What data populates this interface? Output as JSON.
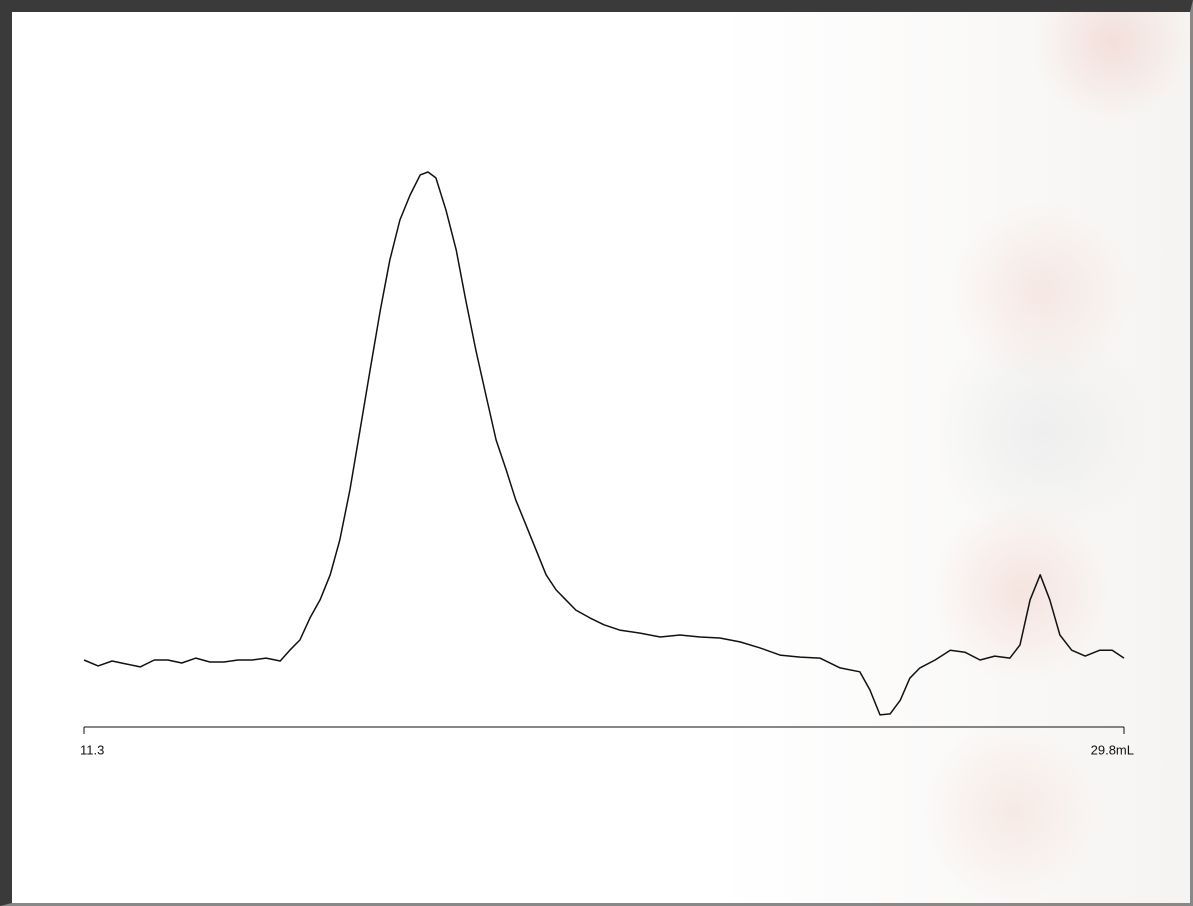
{
  "chart_data": {
    "type": "line",
    "x": [
      11.3,
      11.55,
      11.8,
      12.05,
      12.3,
      12.55,
      12.79,
      13.04,
      13.29,
      13.54,
      13.79,
      14.04,
      14.29,
      14.54,
      14.79,
      14.96,
      15.14,
      15.32,
      15.5,
      15.68,
      15.85,
      16.03,
      16.21,
      16.39,
      16.57,
      16.74,
      16.92,
      17.1,
      17.28,
      17.42,
      17.56,
      17.74,
      17.92,
      18.09,
      18.27,
      18.45,
      18.63,
      18.81,
      18.98,
      19.16,
      19.34,
      19.52,
      19.7,
      19.87,
      20.05,
      20.3,
      20.55,
      20.83,
      21.19,
      21.55,
      21.9,
      22.26,
      22.61,
      22.97,
      23.32,
      23.68,
      24.04,
      24.39,
      24.75,
      25.1,
      25.28,
      25.46,
      25.64,
      25.82,
      25.99,
      26.17,
      26.44,
      26.71,
      26.97,
      27.24,
      27.5,
      27.77,
      27.95,
      28.13,
      28.31,
      28.48,
      28.66,
      28.87,
      29.11,
      29.37,
      29.59,
      29.8
    ],
    "series": [
      {
        "color": "#111111",
        "values": [
          0.4,
          -0.8,
          0.2,
          -0.4,
          -1.0,
          0.4,
          0.4,
          -0.2,
          0.8,
          0,
          0,
          0.4,
          0.4,
          0.8,
          0.2,
          2.4,
          4.5,
          9.0,
          12.7,
          17.8,
          24.9,
          35.1,
          47.3,
          59.6,
          71.8,
          82.0,
          90.2,
          95.3,
          99.4,
          100,
          98.8,
          92.2,
          84.1,
          73.9,
          63.7,
          54.5,
          45.3,
          39.2,
          33.1,
          28.0,
          22.9,
          17.8,
          14.7,
          12.7,
          10.6,
          9.0,
          7.6,
          6.5,
          5.9,
          5.1,
          5.5,
          5.1,
          4.9,
          4.1,
          2.9,
          1.4,
          1.0,
          0.8,
          -1.2,
          -2.0,
          -5.7,
          -10.8,
          -10.6,
          -7.8,
          -3.3,
          -1.2,
          0.4,
          2.4,
          2.0,
          0.4,
          1.2,
          0.8,
          3.5,
          12.7,
          17.8,
          12.7,
          5.5,
          2.4,
          1.2,
          2.4,
          2.4,
          0.8
        ]
      }
    ],
    "xlim": [
      11.3,
      29.8
    ],
    "xticks": [
      11.3,
      {
        "value": 29.8,
        "label": "29.8mL"
      }
    ],
    "ylim": [
      -20,
      110
    ]
  }
}
